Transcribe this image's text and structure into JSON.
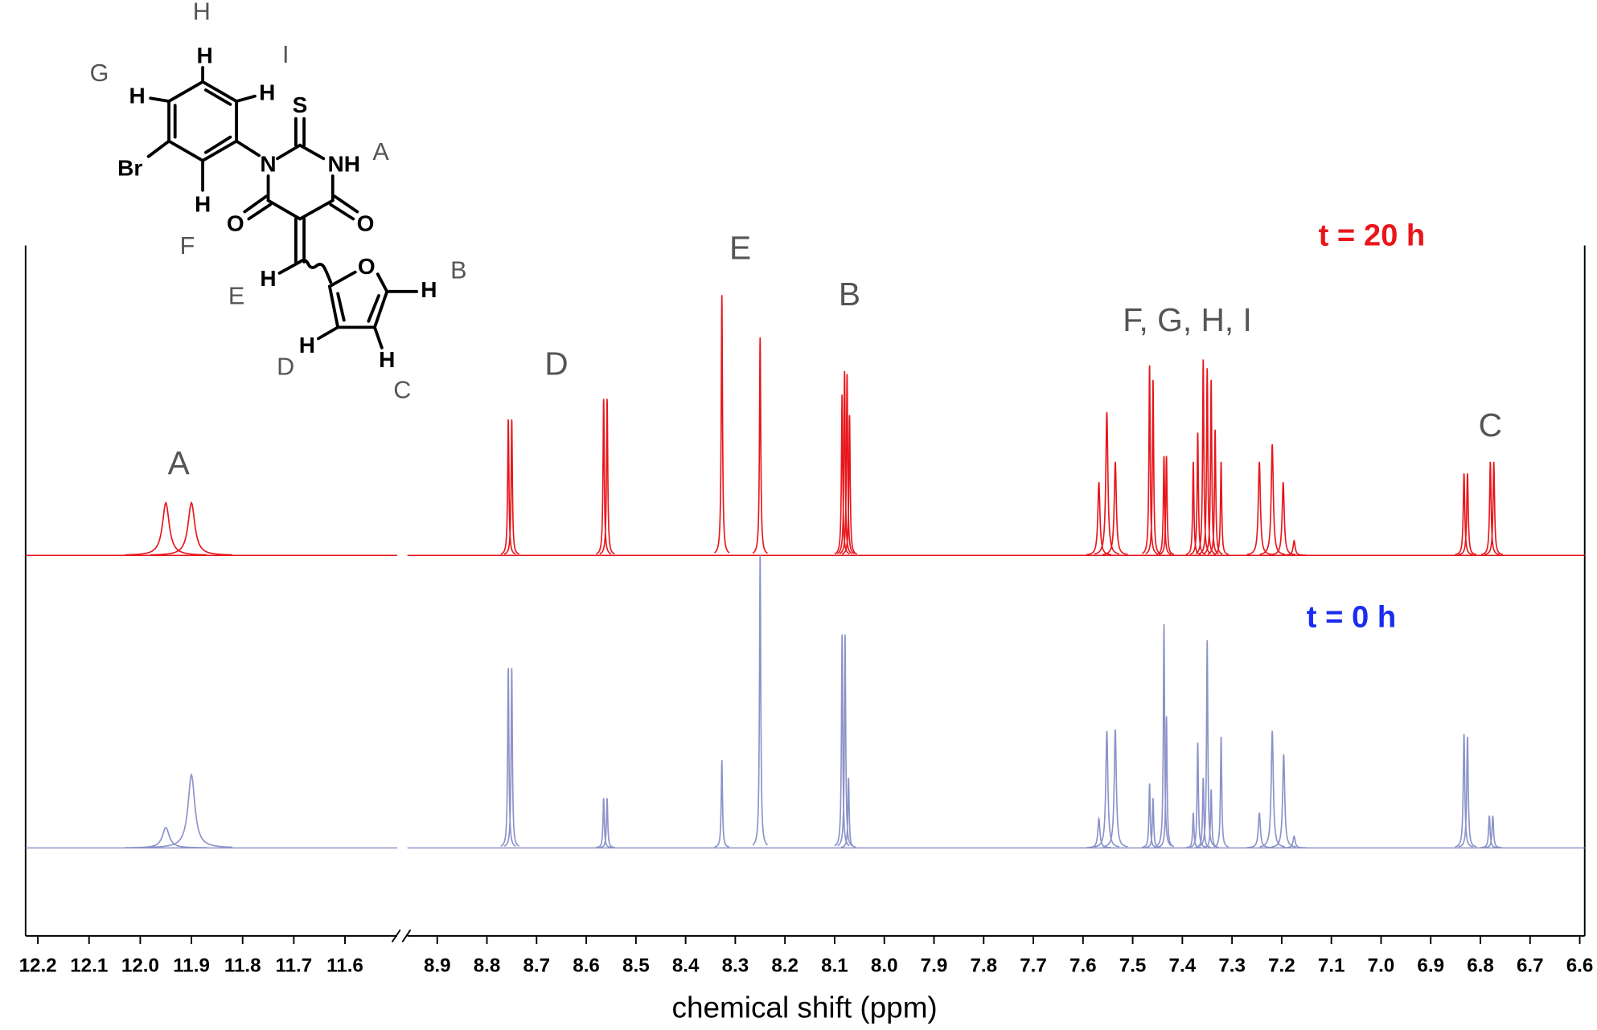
{
  "chart_data": {
    "type": "spectrum",
    "x_label": "chemical shift (ppm)",
    "segments": [
      {
        "xlim": [
          12.224,
          11.498
        ],
        "xticks": [
          12.2,
          12.1,
          {
            "value": 12.0,
            "label": "12.0"
          },
          11.9,
          11.8,
          11.7,
          11.6
        ]
      },
      {
        "xlim": [
          8.96,
          6.59
        ],
        "xticks": [
          8.9,
          8.8,
          8.7,
          8.6,
          8.5,
          8.4,
          8.3,
          8.2,
          8.1,
          {
            "value": 8.0,
            "label": "8.0"
          },
          7.9,
          7.8,
          7.7,
          7.6,
          7.5,
          7.4,
          7.3,
          7.2,
          7.1,
          {
            "value": 7.0,
            "label": "7.0"
          },
          6.9,
          6.8,
          6.7,
          6.6
        ]
      }
    ],
    "series": [
      {
        "name": "t = 20 h",
        "color": "#e8161b",
        "label_color": "#e8161b",
        "peaks": [
          {
            "ppm": 11.95,
            "height": 18,
            "width": 0.008
          },
          {
            "ppm": 11.9,
            "height": 18,
            "width": 0.008
          },
          {
            "ppm": 8.757,
            "height": 46.5,
            "width": 0.0015
          },
          {
            "ppm": 8.75,
            "height": 46.5,
            "width": 0.0015
          },
          {
            "ppm": 8.565,
            "height": 53.5,
            "width": 0.0015
          },
          {
            "ppm": 8.558,
            "height": 53.5,
            "width": 0.0015
          },
          {
            "ppm": 8.327,
            "height": 89,
            "width": 0.0015
          },
          {
            "ppm": 8.25,
            "height": 74.5,
            "width": 0.0015
          },
          {
            "ppm": 8.085,
            "height": 55,
            "width": 0.0015
          },
          {
            "ppm": 8.08,
            "height": 63,
            "width": 0.0015
          },
          {
            "ppm": 8.075,
            "height": 62,
            "width": 0.0015
          },
          {
            "ppm": 8.07,
            "height": 48,
            "width": 0.0015
          },
          {
            "ppm": 7.568,
            "height": 25,
            "width": 0.0025
          },
          {
            "ppm": 7.552,
            "height": 49,
            "width": 0.0025
          },
          {
            "ppm": 7.535,
            "height": 32,
            "width": 0.0025
          },
          {
            "ppm": 7.466,
            "height": 65,
            "width": 0.0015
          },
          {
            "ppm": 7.459,
            "height": 60,
            "width": 0.0015
          },
          {
            "ppm": 7.437,
            "height": 34,
            "width": 0.0015
          },
          {
            "ppm": 7.432,
            "height": 34,
            "width": 0.0015
          },
          {
            "ppm": 7.378,
            "height": 32,
            "width": 0.0015
          },
          {
            "ppm": 7.369,
            "height": 42,
            "width": 0.0015
          },
          {
            "ppm": 7.358,
            "height": 67,
            "width": 0.0015
          },
          {
            "ppm": 7.35,
            "height": 64,
            "width": 0.0015
          },
          {
            "ppm": 7.342,
            "height": 60,
            "width": 0.0015
          },
          {
            "ppm": 7.334,
            "height": 43,
            "width": 0.0015
          },
          {
            "ppm": 7.322,
            "height": 32,
            "width": 0.0015
          },
          {
            "ppm": 7.245,
            "height": 32,
            "width": 0.0025
          },
          {
            "ppm": 7.219,
            "height": 38,
            "width": 0.0025
          },
          {
            "ppm": 7.197,
            "height": 25,
            "width": 0.0025
          },
          {
            "ppm": 7.175,
            "height": 5,
            "width": 0.0025
          },
          {
            "ppm": 6.833,
            "height": 28,
            "width": 0.0018
          },
          {
            "ppm": 6.826,
            "height": 28,
            "width": 0.0018
          },
          {
            "ppm": 6.78,
            "height": 32,
            "width": 0.0018
          },
          {
            "ppm": 6.773,
            "height": 32,
            "width": 0.0018
          }
        ]
      },
      {
        "name": "t = 0 h",
        "color": "#8b93c9",
        "label_color": "#1a2cf0",
        "peaks": [
          {
            "ppm": 11.95,
            "height": 7,
            "width": 0.008
          },
          {
            "ppm": 11.9,
            "height": 25,
            "width": 0.008
          },
          {
            "ppm": 8.757,
            "height": 61.5,
            "width": 0.0015
          },
          {
            "ppm": 8.75,
            "height": 61.5,
            "width": 0.0015
          },
          {
            "ppm": 8.565,
            "height": 17,
            "width": 0.0015
          },
          {
            "ppm": 8.558,
            "height": 17,
            "width": 0.0015
          },
          {
            "ppm": 8.327,
            "height": 30,
            "width": 0.0015
          },
          {
            "ppm": 8.25,
            "height": 100,
            "width": 0.0015
          },
          {
            "ppm": 8.085,
            "height": 73,
            "width": 0.0015
          },
          {
            "ppm": 8.079,
            "height": 73,
            "width": 0.0015
          },
          {
            "ppm": 8.072,
            "height": 24,
            "width": 0.0015
          },
          {
            "ppm": 7.568,
            "height": 10,
            "width": 0.0025
          },
          {
            "ppm": 7.552,
            "height": 40,
            "width": 0.0025
          },
          {
            "ppm": 7.535,
            "height": 40.5,
            "width": 0.0025
          },
          {
            "ppm": 7.466,
            "height": 22,
            "width": 0.0015
          },
          {
            "ppm": 7.459,
            "height": 17,
            "width": 0.0015
          },
          {
            "ppm": 7.437,
            "height": 76.5,
            "width": 0.0015
          },
          {
            "ppm": 7.432,
            "height": 45,
            "width": 0.0015
          },
          {
            "ppm": 7.378,
            "height": 12,
            "width": 0.0015
          },
          {
            "ppm": 7.369,
            "height": 36,
            "width": 0.0015
          },
          {
            "ppm": 7.358,
            "height": 24,
            "width": 0.0015
          },
          {
            "ppm": 7.35,
            "height": 71,
            "width": 0.0015
          },
          {
            "ppm": 7.342,
            "height": 20,
            "width": 0.0015
          },
          {
            "ppm": 7.322,
            "height": 38,
            "width": 0.0015
          },
          {
            "ppm": 7.245,
            "height": 12,
            "width": 0.0025
          },
          {
            "ppm": 7.219,
            "height": 40,
            "width": 0.0025
          },
          {
            "ppm": 7.196,
            "height": 32,
            "width": 0.0025
          },
          {
            "ppm": 7.175,
            "height": 4,
            "width": 0.0025
          },
          {
            "ppm": 6.833,
            "height": 39,
            "width": 0.0018
          },
          {
            "ppm": 6.826,
            "height": 38,
            "width": 0.0018
          },
          {
            "ppm": 6.782,
            "height": 11,
            "width": 0.0018
          },
          {
            "ppm": 6.775,
            "height": 11,
            "width": 0.0018
          }
        ]
      }
    ],
    "annotations": [
      {
        "text": "A",
        "x": 11.925
      },
      {
        "text": "D",
        "x": 8.66
      },
      {
        "text": "E",
        "x": 8.29
      },
      {
        "text": "B",
        "x": 8.07
      },
      {
        "text": "F, G, H, I",
        "x": 7.39
      },
      {
        "text": "C",
        "x": 6.78
      }
    ]
  },
  "structure": {
    "atoms": [
      "H",
      "H",
      "H",
      "Br",
      "H",
      "N",
      "S",
      "NH",
      "O",
      "O",
      "H",
      "O",
      "H",
      "H",
      "H"
    ],
    "labels": [
      "H",
      "I",
      "G",
      "A",
      "F",
      "B",
      "E",
      "D",
      "C"
    ]
  }
}
